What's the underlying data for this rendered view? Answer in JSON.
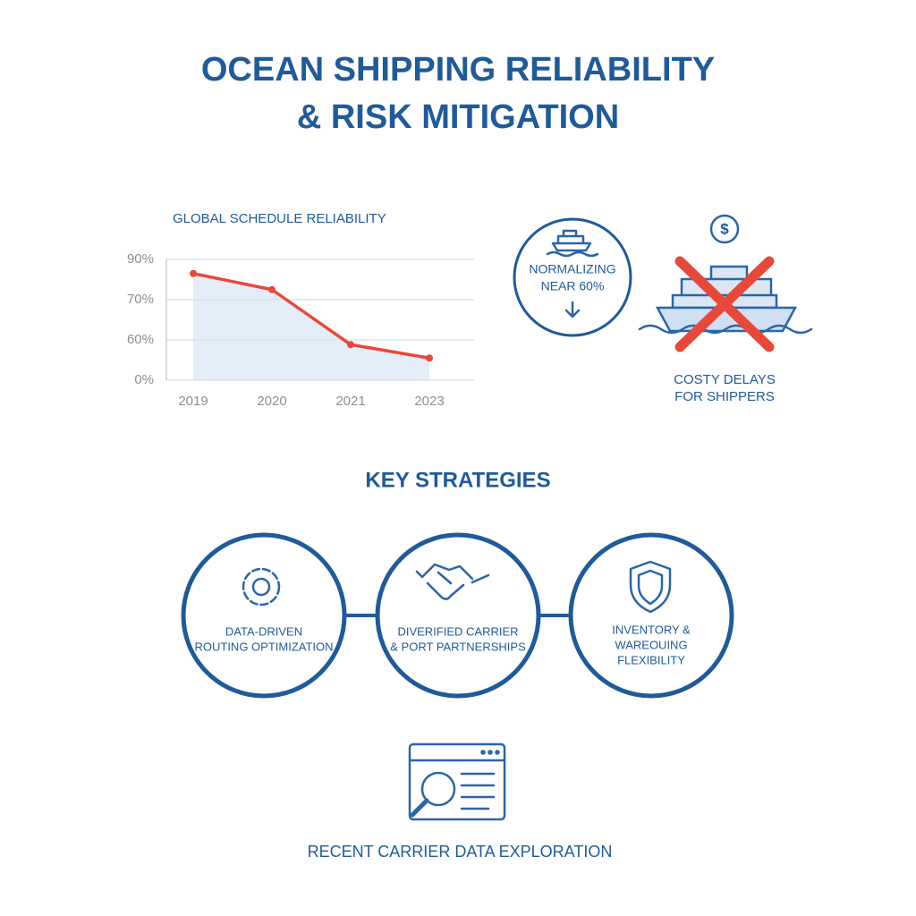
{
  "header": {
    "title": [
      "OCEAN SHIPPING RELIABILITY",
      "& RISK MITIGATION"
    ]
  },
  "chart_data": {
    "type": "line",
    "title": "GLOBAL SCHEDULE RELIABILITY",
    "categories": [
      "2019",
      "2020",
      "2021",
      "2023"
    ],
    "series": [
      {
        "color": "#e8483a",
        "values": [
          83,
          75,
          53,
          33
        ]
      }
    ],
    "ylim": [
      0,
      90
    ],
    "yticks": [
      {
        "value": 90,
        "label": "90%"
      },
      {
        "value": 70,
        "label": "70%"
      },
      {
        "value": 60,
        "label": "60%"
      },
      {
        "value": 0,
        "label": "0%"
      }
    ],
    "grid": true,
    "area_color": "#e3eef9"
  },
  "callout": {
    "lines": [
      "NORMALIZING",
      "NEAR 60%"
    ]
  },
  "impact": {
    "lines": [
      "COSTY DELAYS",
      "FOR SHIPPERS"
    ]
  },
  "strategies": {
    "title": "KEY STRATEGIES",
    "items": [
      {
        "lines": [
          "DATA-DRIVEN",
          "ROUTING OPTIMIZATION"
        ]
      },
      {
        "lines": [
          "DIVERIFIED CARRIER",
          "& PORT PARTNERSHIPS"
        ]
      },
      {
        "lines": [
          "INVENTORY &",
          "WAREOUING",
          "FLEXIBILITY"
        ]
      }
    ]
  },
  "footer": {
    "label": "RECENT CARRIER DATA EXPLORATION"
  }
}
